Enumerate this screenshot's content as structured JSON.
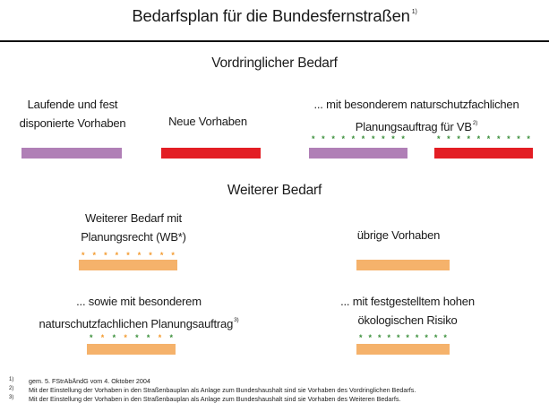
{
  "title": "Bedarfsplan für die Bundesfernstraßen",
  "title_footnote": "1)",
  "section_urgent": "Vordringlicher Bedarf",
  "section_further": "Weiterer Bedarf",
  "legend": {
    "ongoing_line1": "Laufende und fest",
    "ongoing_line2": "disponierte Vorhaben",
    "new": "Neue Vorhaben",
    "vb_nature_line1": "... mit besonderem naturschutzfachlichen",
    "vb_nature_line2": "Planungsauftrag für VB",
    "vb_nature_note": "2)",
    "wb_line1": "Weiterer Bedarf mit",
    "wb_line2": "Planungsrecht (WB*)",
    "other": "übrige Vorhaben",
    "wb_nature_line1": "... sowie mit besonderem",
    "wb_nature_line2": "naturschutzfachlichen Planungsauftrag",
    "wb_nature_note": "3)",
    "eco_line1": "... mit festgestelltem hohen",
    "eco_line2": "ökologischen Risiko"
  },
  "colors": {
    "purple": "#b07fb6",
    "red": "#e31e24",
    "orange": "#f5b26b",
    "green_dot": "#3a8f3a",
    "orange_dot": "#f39a2e"
  },
  "footnotes": [
    {
      "num": "1)",
      "text": "gem. 5. FStrAbÄndG vom 4. Oktober 2004"
    },
    {
      "num": "2)",
      "text": "Mit der Einstellung der Vorhaben in den Straßenbauplan als Anlage zum Bundeshaushalt sind sie Vorhaben des Vordringlichen Bedarfs."
    },
    {
      "num": "3)",
      "text": "Mit der Einstellung der Vorhaben in den Straßenbauplan als Anlage zum Bundeshaushalt sind sie Vorhaben des Weiteren Bedarfs."
    }
  ]
}
